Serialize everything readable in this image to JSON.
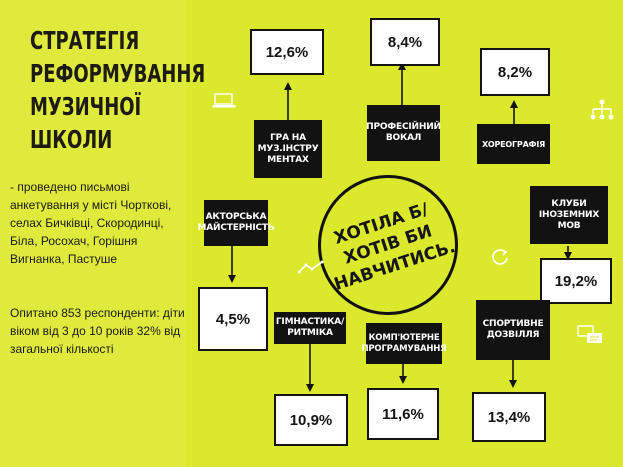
{
  "title": {
    "lines": [
      "СТРАТЕГІЯ",
      "РЕФОРМУВАННЯ",
      "МУЗИЧНОЇ",
      "ШКОЛИ"
    ]
  },
  "intro": "- проведено письмові анкетування у місті Чорткові, селах Бичківці, Скородинці, Біла, Росохач, Горішня Вигнанка, Пастуше",
  "stats": "Опитано 853 респонденти: діти віком від 3 до 10 років 32% від загальної кількості",
  "center": {
    "lines": [
      "ХОТІЛА Б/",
      "ХОТІВ БИ",
      "НАВЧИТИСЬ."
    ]
  },
  "categories": [
    {
      "label": "ГРА НА МУЗ.ІНСТРУ МЕНТАХ",
      "value": "12,6%"
    },
    {
      "label": "ПРОФЕСІЙНИЙ ВОКАЛ",
      "value": "8,4%"
    },
    {
      "label": "ХОРЕОГРАФІЯ",
      "value": "8,2%"
    },
    {
      "label": "КЛУБИ ІНОЗЕМНИХ МОВ",
      "value": "19,2%"
    },
    {
      "label": "СПОРТИВНЕ ДОЗВІЛЛЯ",
      "value": "13,4%"
    },
    {
      "label": "КОМП'ЮТЕРНЕ ПРОГРАМУВАННЯ",
      "value": "11,6%"
    },
    {
      "label": "ГІМНАСТИКА/ РИТМІКА",
      "value": "10,9%"
    },
    {
      "label": "АКТОРСЬКА МАЙСТЕРНІСТЬ",
      "value": "4,5%"
    }
  ],
  "icons": [
    "laptop-icon",
    "sitemap-icon",
    "line-chart-icon",
    "refresh-icon",
    "chat-icon"
  ],
  "colors": {
    "background": "#dbe82b",
    "panel": "#e0ea3c",
    "label": "#121212",
    "box": "#ffffff"
  }
}
